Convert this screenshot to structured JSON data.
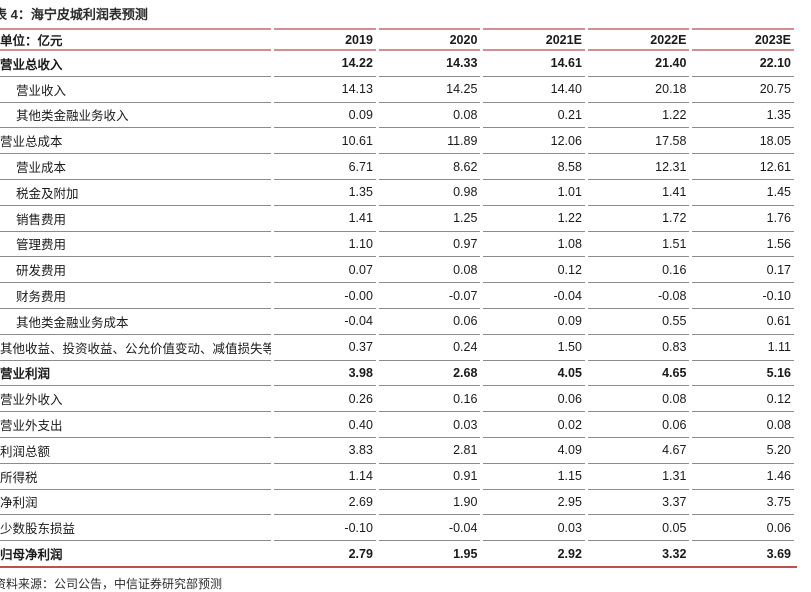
{
  "title": "表 4：海宁皮城利润表预测",
  "source": "资料来源：公司公告，中信证券研究部预测",
  "colors": {
    "accent_red_rule": "#d4908e",
    "bottom_red_rule": "#bf504c",
    "row_rule_gray": "#8c8c8c"
  },
  "table": {
    "unit_header": "单位：亿元",
    "columns": [
      "2019",
      "2020",
      "2021E",
      "2022E",
      "2023E"
    ],
    "rows": [
      {
        "label": "营业总收入",
        "bold": true,
        "indent": false,
        "values": [
          "14.22",
          "14.33",
          "14.61",
          "21.40",
          "22.10"
        ]
      },
      {
        "label": "营业收入",
        "bold": false,
        "indent": true,
        "values": [
          "14.13",
          "14.25",
          "14.40",
          "20.18",
          "20.75"
        ]
      },
      {
        "label": "其他类金融业务收入",
        "bold": false,
        "indent": true,
        "values": [
          "0.09",
          "0.08",
          "0.21",
          "1.22",
          "1.35"
        ]
      },
      {
        "label": "营业总成本",
        "bold": false,
        "indent": false,
        "values": [
          "10.61",
          "11.89",
          "12.06",
          "17.58",
          "18.05"
        ]
      },
      {
        "label": "营业成本",
        "bold": false,
        "indent": true,
        "values": [
          "6.71",
          "8.62",
          "8.58",
          "12.31",
          "12.61"
        ]
      },
      {
        "label": "税金及附加",
        "bold": false,
        "indent": true,
        "values": [
          "1.35",
          "0.98",
          "1.01",
          "1.41",
          "1.45"
        ]
      },
      {
        "label": "销售费用",
        "bold": false,
        "indent": true,
        "values": [
          "1.41",
          "1.25",
          "1.22",
          "1.72",
          "1.76"
        ]
      },
      {
        "label": "管理费用",
        "bold": false,
        "indent": true,
        "values": [
          "1.10",
          "0.97",
          "1.08",
          "1.51",
          "1.56"
        ]
      },
      {
        "label": "研发费用",
        "bold": false,
        "indent": true,
        "values": [
          "0.07",
          "0.08",
          "0.12",
          "0.16",
          "0.17"
        ]
      },
      {
        "label": "财务费用",
        "bold": false,
        "indent": true,
        "values": [
          "-0.00",
          "-0.07",
          "-0.04",
          "-0.08",
          "-0.10"
        ]
      },
      {
        "label": "其他类金融业务成本",
        "bold": false,
        "indent": true,
        "values": [
          "-0.04",
          "0.06",
          "0.09",
          "0.55",
          "0.61"
        ]
      },
      {
        "label": "其他收益、投资收益、公允价值变动、减值损失等",
        "bold": false,
        "indent": false,
        "values": [
          "0.37",
          "0.24",
          "1.50",
          "0.83",
          "1.11"
        ]
      },
      {
        "label": "营业利润",
        "bold": true,
        "indent": false,
        "values": [
          "3.98",
          "2.68",
          "4.05",
          "4.65",
          "5.16"
        ]
      },
      {
        "label": "营业外收入",
        "bold": false,
        "indent": false,
        "values": [
          "0.26",
          "0.16",
          "0.06",
          "0.08",
          "0.12"
        ]
      },
      {
        "label": "营业外支出",
        "bold": false,
        "indent": false,
        "values": [
          "0.40",
          "0.03",
          "0.02",
          "0.06",
          "0.08"
        ]
      },
      {
        "label": "利润总额",
        "bold": false,
        "indent": false,
        "values": [
          "3.83",
          "2.81",
          "4.09",
          "4.67",
          "5.20"
        ]
      },
      {
        "label": "所得税",
        "bold": false,
        "indent": false,
        "values": [
          "1.14",
          "0.91",
          "1.15",
          "1.31",
          "1.46"
        ]
      },
      {
        "label": "净利润",
        "bold": false,
        "indent": false,
        "values": [
          "2.69",
          "1.90",
          "2.95",
          "3.37",
          "3.75"
        ]
      },
      {
        "label": "少数股东损益",
        "bold": false,
        "indent": false,
        "values": [
          "-0.10",
          "-0.04",
          "0.03",
          "0.05",
          "0.06"
        ]
      },
      {
        "label": "归母净利润",
        "bold": true,
        "indent": false,
        "values": [
          "2.79",
          "1.95",
          "2.92",
          "3.32",
          "3.69"
        ]
      }
    ]
  }
}
